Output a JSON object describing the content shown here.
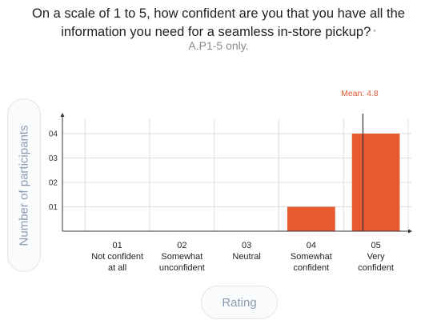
{
  "question": {
    "text": "On a scale of 1 to 5, how confident are you that you have all the information you need for a seamless in-store pickup?",
    "required_marker": "*",
    "subtitle": "A.P1-5 only."
  },
  "colors": {
    "bar": "#e85a32",
    "mean_line": "#333333",
    "mean_label": "#e05a32",
    "grid": "#dddddd",
    "axis": "#333333"
  },
  "chart_data": {
    "type": "bar",
    "title": "On a scale of 1 to 5, how confident are you that you have all the information you need for a seamless in-store pickup?",
    "subtitle": "A.P1-5 only.",
    "xlabel": "Rating",
    "ylabel": "Number of participants",
    "categories": [
      {
        "code": "01",
        "lines": [
          "Not confident",
          "at all"
        ]
      },
      {
        "code": "02",
        "lines": [
          "Somewhat",
          "unconfident"
        ]
      },
      {
        "code": "03",
        "lines": [
          "Neutral"
        ]
      },
      {
        "code": "04",
        "lines": [
          "Somewhat",
          "confident"
        ]
      },
      {
        "code": "05",
        "lines": [
          "Very",
          "confident"
        ]
      }
    ],
    "values": [
      0,
      0,
      0,
      1,
      4
    ],
    "y_ticks": [
      "01",
      "02",
      "03",
      "04"
    ],
    "ylim": [
      0,
      4.6
    ],
    "grid": true,
    "mean": 4.8,
    "mean_label": "Mean: 4.8"
  }
}
